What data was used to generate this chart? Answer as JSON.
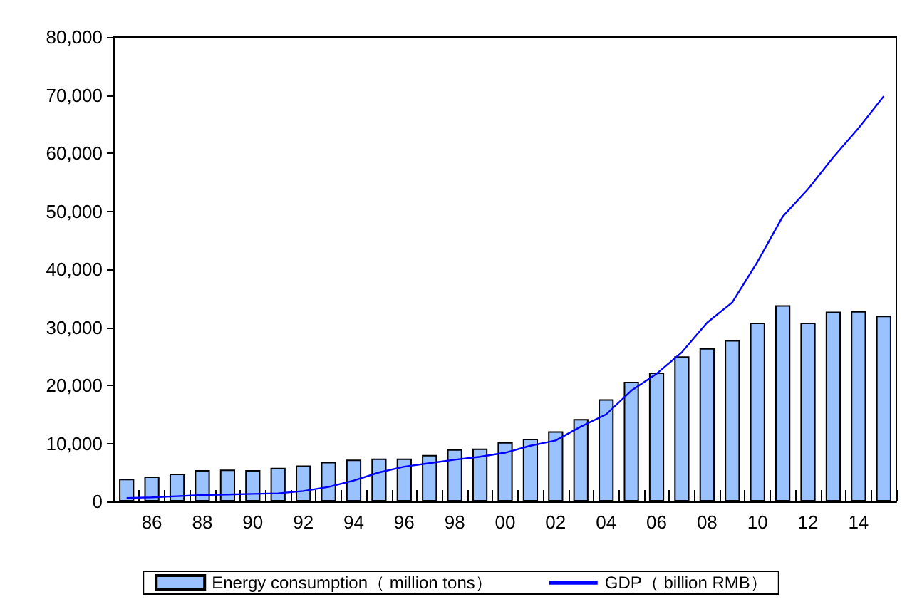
{
  "chart_data": {
    "type": "bar",
    "categories": [
      null,
      "86",
      null,
      "88",
      null,
      "90",
      null,
      "92",
      null,
      "94",
      null,
      "96",
      null,
      "98",
      null,
      "00",
      null,
      "02",
      null,
      "04",
      null,
      "06",
      null,
      "08",
      null,
      "10",
      null,
      "12",
      null,
      "14",
      null
    ],
    "series": [
      {
        "name": "Energy consumption（ million tons）",
        "color": "#99c2ff",
        "values": [
          3900,
          4300,
          4800,
          5400,
          5500,
          5400,
          5800,
          6200,
          6800,
          7200,
          7400,
          7400,
          8000,
          9000,
          9100,
          10200,
          10800,
          12100,
          14200,
          17600,
          20600,
          22200,
          25000,
          26400,
          27800,
          30800,
          33800,
          30800,
          32700,
          32800,
          32000
        ]
      },
      {
        "name": "GDP（ billion RMB）",
        "type": "line",
        "color": "#0000ff",
        "values": [
          600,
          700,
          900,
          1100,
          1200,
          1300,
          1400,
          1800,
          2500,
          3600,
          5000,
          6000,
          6600,
          7200,
          7700,
          8400,
          9600,
          10500,
          12900,
          15000,
          19100,
          22000,
          25700,
          30800,
          34300,
          41300,
          49100,
          53800,
          59300,
          64300,
          69800
        ]
      }
    ],
    "ylim": [
      0,
      80000
    ],
    "yticks": [
      {
        "value": 0,
        "label": "0"
      },
      {
        "value": 10000,
        "label": "10,000"
      },
      {
        "value": 20000,
        "label": "20,000"
      },
      {
        "value": 30000,
        "label": "30,000"
      },
      {
        "value": 40000,
        "label": "40,000"
      },
      {
        "value": 50000,
        "label": "50,000"
      },
      {
        "value": 60000,
        "label": "60,000"
      },
      {
        "value": 70000,
        "label": "70,000"
      },
      {
        "value": 80000,
        "label": "80,000"
      }
    ],
    "grid": false,
    "legend": "bottom",
    "marker": "none"
  }
}
